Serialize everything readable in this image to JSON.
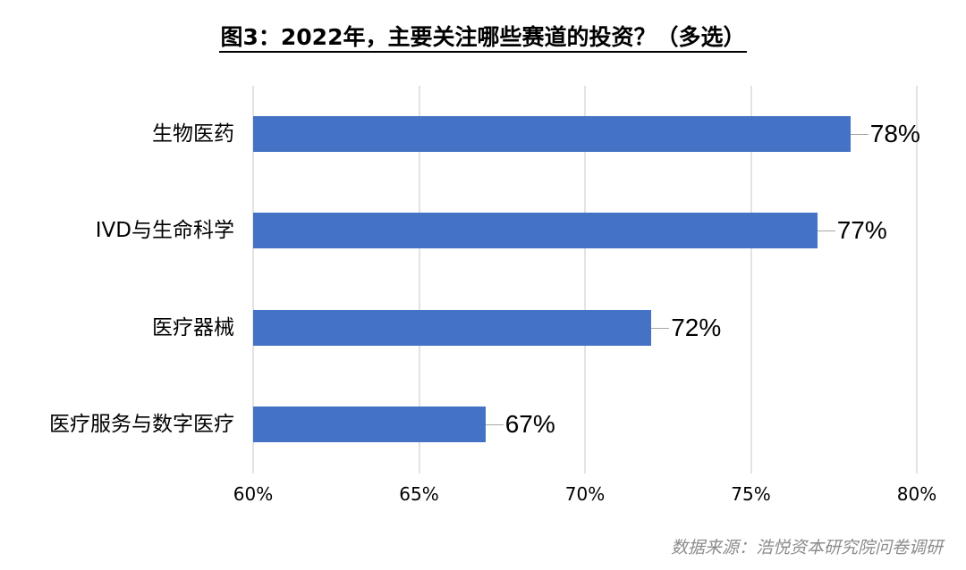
{
  "title": "图3：2022年，主要关注哪些赛道的投资？（多选）",
  "source": "数据来源：浩悦资本研究院问卷调研",
  "colors": {
    "bar": "#4472c4",
    "grid": "#e3e3e3",
    "leader": "#a6a6a6",
    "source_text": "#8c8c8c"
  },
  "chart_data": {
    "type": "bar",
    "orientation": "horizontal",
    "title": "图3：2022年，主要关注哪些赛道的投资？（多选）",
    "categories": [
      "生物医药",
      "IVD与生命科学",
      "医疗器械",
      "医疗服务与数字医疗"
    ],
    "values": [
      78,
      77,
      72,
      67
    ],
    "value_labels": [
      "78%",
      "77%",
      "72%",
      "67%"
    ],
    "xlabel": "",
    "ylabel": "",
    "xlim": [
      60,
      80
    ],
    "x_ticks": [
      "60%",
      "65%",
      "70%",
      "75%",
      "80%"
    ],
    "grid": "vertical",
    "legend": "none",
    "source": "数据来源：浩悦资本研究院问卷调研"
  }
}
